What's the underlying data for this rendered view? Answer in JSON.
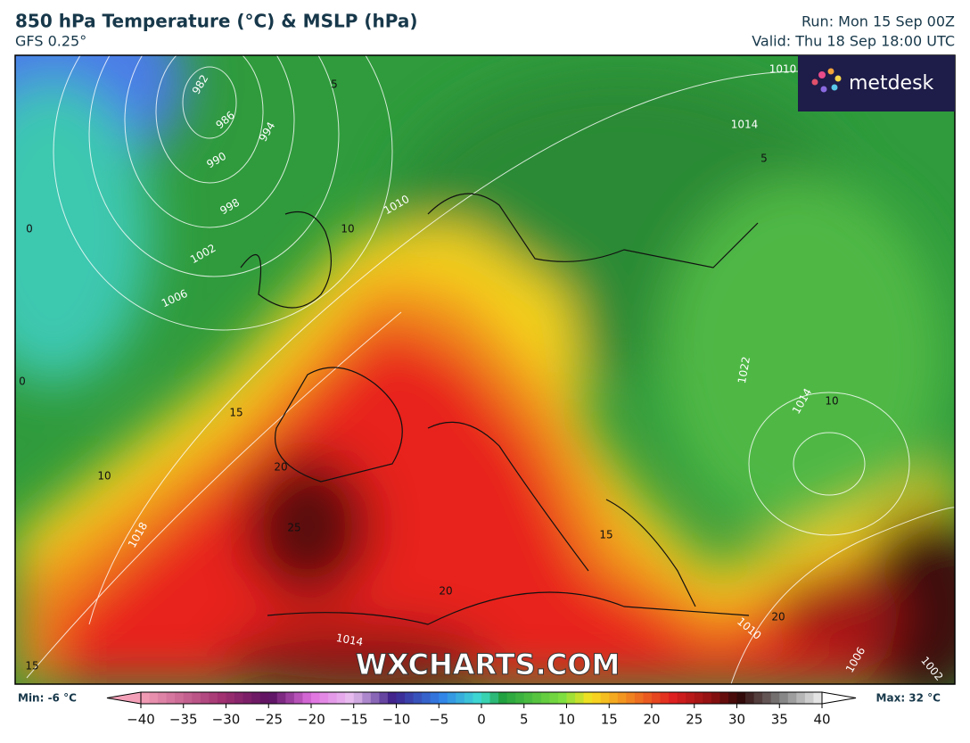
{
  "header": {
    "title": "850 hPa Temperature (°C) & MSLP (hPa)",
    "subtitle": "GFS 0.25°",
    "run": "Run: Mon 15 Sep 00Z",
    "valid": "Valid: Thu 18 Sep 18:00 UTC"
  },
  "logo": "metdesk",
  "watermark": "WXCHARTS.COM",
  "map": {
    "isobar_labels": [
      "982",
      "986",
      "990",
      "994",
      "998",
      "1002",
      "1006",
      "1010",
      "1010",
      "1014",
      "1018",
      "1014",
      "1022",
      "1014",
      "1010",
      "1006",
      "1002"
    ],
    "isotherm_labels": [
      "5",
      "10",
      "0",
      "0",
      "15",
      "10",
      "20",
      "25",
      "15",
      "20",
      "20",
      "15",
      "10",
      "5"
    ]
  },
  "colorbar": {
    "min_label": "Min: -6 °C",
    "max_label": "Max: 32 °C",
    "range": [
      -40,
      40
    ],
    "ticks": [
      {
        "value": -40,
        "label": "−40"
      },
      {
        "value": -35,
        "label": "−35"
      },
      {
        "value": -30,
        "label": "−30"
      },
      {
        "value": -25,
        "label": "−25"
      },
      {
        "value": -20,
        "label": "−20"
      },
      {
        "value": -15,
        "label": "−15"
      },
      {
        "value": -10,
        "label": "−10"
      },
      {
        "value": -5,
        "label": "−5"
      },
      0,
      5,
      10,
      15,
      20,
      25,
      30,
      35,
      40
    ]
  }
}
